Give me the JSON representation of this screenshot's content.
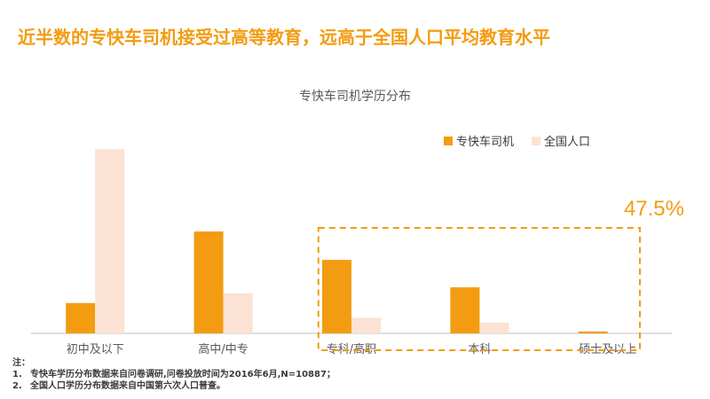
{
  "headline": "近半数的专快车司机接受过高等教育，远高于全国人口平均教育水平",
  "colors": {
    "driver": "#f39c12",
    "population": "#fce2d2",
    "headline": "#f39c12",
    "axis": "#bfbfbf",
    "highlight_box": "#f39c12"
  },
  "chart_data": {
    "type": "bar",
    "title": "专快车司机学历分布",
    "categories": [
      "初中及以下",
      "高中/中专",
      "专科/高职",
      "本科",
      "硕士及以上"
    ],
    "series": [
      {
        "name": "专快车司机",
        "values": [
          15.5,
          52.0,
          37.5,
          23.5,
          1.0
        ]
      },
      {
        "name": "全国人口",
        "values": [
          94.0,
          20.5,
          8.0,
          5.5,
          0.5
        ]
      }
    ],
    "ylim": [
      0,
      100
    ],
    "legend": "top-right",
    "grid": false,
    "annotation": {
      "label": "47.5%",
      "covers": [
        "专科/高职",
        "本科",
        "硕士及以上"
      ]
    }
  },
  "notes": {
    "header": "注：",
    "items": [
      {
        "num": "1.",
        "text": "专快车学历分布数据来自问卷调研,问卷投放时间为2016年6月,N=10887；"
      },
      {
        "num": "2.",
        "text": "全国人口学历分布数据来自中国第六次人口普查。"
      }
    ]
  }
}
